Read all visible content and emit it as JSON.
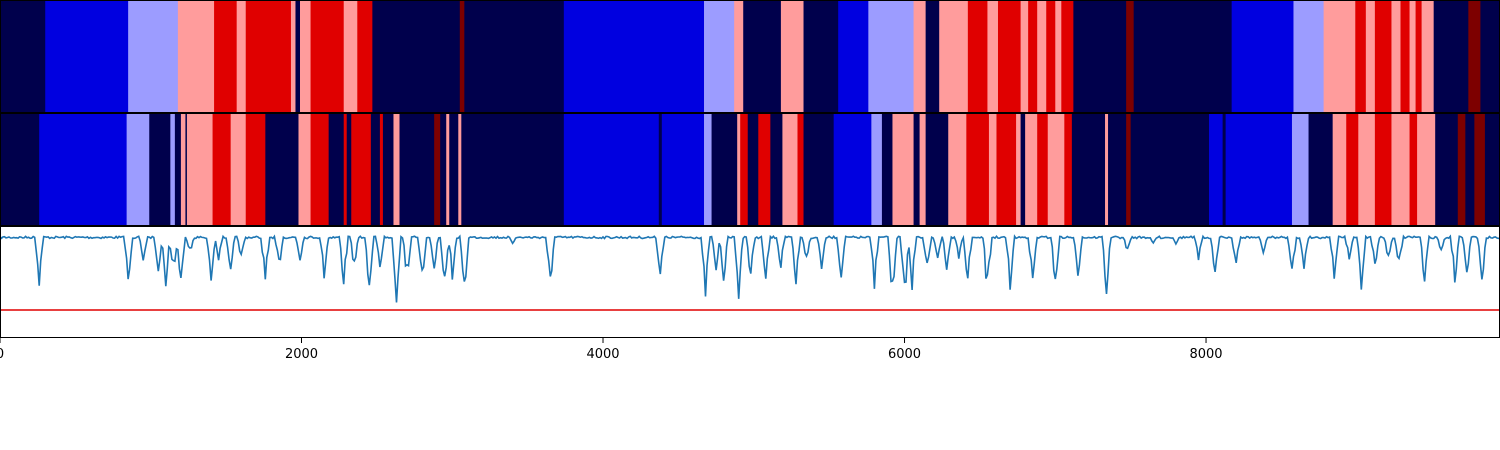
{
  "chart_data": {
    "type": "heatmap",
    "title": "",
    "xlabel": "",
    "ylabel": "",
    "xlim": [
      0,
      9950
    ],
    "x_ticks": [
      "0",
      "2000",
      "4000",
      "6000",
      "8000"
    ],
    "x_tick_values": [
      0,
      2000,
      4000,
      6000,
      8000
    ],
    "state_colors": {
      "0": "#00004c",
      "1": "#0000e0",
      "2": "#9c9cff",
      "3": "#ff9c9c",
      "4": "#e00000",
      "5": "#7d0000"
    },
    "tracks": [
      {
        "segments": [
          [
            0,
            300,
            0
          ],
          [
            300,
            850,
            1
          ],
          [
            850,
            1180,
            2
          ],
          [
            1180,
            1420,
            3
          ],
          [
            1420,
            1570,
            4
          ],
          [
            1570,
            1630,
            3
          ],
          [
            1630,
            1930,
            4
          ],
          [
            1930,
            1960,
            3
          ],
          [
            1960,
            1990,
            0
          ],
          [
            1990,
            2060,
            3
          ],
          [
            2060,
            2280,
            4
          ],
          [
            2280,
            2370,
            3
          ],
          [
            2370,
            2470,
            4
          ],
          [
            2470,
            3050,
            0
          ],
          [
            3050,
            3080,
            5
          ],
          [
            3080,
            3740,
            0
          ],
          [
            3740,
            4670,
            1
          ],
          [
            4670,
            4870,
            2
          ],
          [
            4870,
            4930,
            3
          ],
          [
            4930,
            5180,
            0
          ],
          [
            5180,
            5330,
            3
          ],
          [
            5330,
            5560,
            0
          ],
          [
            5560,
            5760,
            1
          ],
          [
            5760,
            6060,
            2
          ],
          [
            6060,
            6140,
            3
          ],
          [
            6140,
            6230,
            0
          ],
          [
            6230,
            6420,
            3
          ],
          [
            6420,
            6550,
            4
          ],
          [
            6550,
            6620,
            3
          ],
          [
            6620,
            6770,
            4
          ],
          [
            6770,
            6820,
            3
          ],
          [
            6820,
            6880,
            4
          ],
          [
            6880,
            6940,
            3
          ],
          [
            6940,
            7000,
            4
          ],
          [
            7000,
            7040,
            3
          ],
          [
            7040,
            7120,
            4
          ],
          [
            7120,
            7470,
            0
          ],
          [
            7470,
            7520,
            5
          ],
          [
            7520,
            8170,
            0
          ],
          [
            8170,
            8580,
            1
          ],
          [
            8580,
            8780,
            2
          ],
          [
            8780,
            8990,
            3
          ],
          [
            8990,
            9060,
            4
          ],
          [
            9060,
            9120,
            3
          ],
          [
            9120,
            9230,
            4
          ],
          [
            9230,
            9290,
            3
          ],
          [
            9290,
            9350,
            4
          ],
          [
            9350,
            9390,
            3
          ],
          [
            9390,
            9430,
            4
          ],
          [
            9430,
            9510,
            3
          ],
          [
            9510,
            9740,
            0
          ],
          [
            9740,
            9820,
            5
          ],
          [
            9820,
            9950,
            0
          ]
        ]
      },
      {
        "segments": [
          [
            0,
            260,
            0
          ],
          [
            260,
            840,
            1
          ],
          [
            840,
            990,
            2
          ],
          [
            990,
            1130,
            0
          ],
          [
            1130,
            1160,
            2
          ],
          [
            1160,
            1200,
            0
          ],
          [
            1200,
            1230,
            3
          ],
          [
            1230,
            1240,
            0
          ],
          [
            1240,
            1410,
            3
          ],
          [
            1410,
            1530,
            4
          ],
          [
            1530,
            1630,
            3
          ],
          [
            1630,
            1760,
            4
          ],
          [
            1760,
            1980,
            0
          ],
          [
            1980,
            2060,
            3
          ],
          [
            2060,
            2180,
            4
          ],
          [
            2180,
            2280,
            0
          ],
          [
            2280,
            2300,
            4
          ],
          [
            2300,
            2330,
            0
          ],
          [
            2330,
            2460,
            4
          ],
          [
            2460,
            2520,
            0
          ],
          [
            2520,
            2540,
            4
          ],
          [
            2540,
            2610,
            0
          ],
          [
            2610,
            2650,
            3
          ],
          [
            2650,
            2880,
            0
          ],
          [
            2880,
            2920,
            5
          ],
          [
            2920,
            2960,
            0
          ],
          [
            2960,
            2980,
            3
          ],
          [
            2980,
            3040,
            0
          ],
          [
            3040,
            3060,
            3
          ],
          [
            3060,
            3740,
            0
          ],
          [
            3740,
            4370,
            1
          ],
          [
            4370,
            4390,
            0
          ],
          [
            4390,
            4670,
            1
          ],
          [
            4670,
            4720,
            2
          ],
          [
            4720,
            4890,
            0
          ],
          [
            4890,
            4910,
            3
          ],
          [
            4910,
            4960,
            4
          ],
          [
            4960,
            5030,
            0
          ],
          [
            5030,
            5110,
            4
          ],
          [
            5110,
            5190,
            0
          ],
          [
            5190,
            5290,
            3
          ],
          [
            5290,
            5330,
            4
          ],
          [
            5330,
            5530,
            0
          ],
          [
            5530,
            5780,
            1
          ],
          [
            5780,
            5850,
            2
          ],
          [
            5850,
            5920,
            0
          ],
          [
            5920,
            5950,
            3
          ],
          [
            5950,
            6060,
            3
          ],
          [
            6060,
            6100,
            0
          ],
          [
            6100,
            6140,
            3
          ],
          [
            6140,
            6290,
            0
          ],
          [
            6290,
            6410,
            3
          ],
          [
            6410,
            6560,
            4
          ],
          [
            6560,
            6610,
            3
          ],
          [
            6610,
            6740,
            4
          ],
          [
            6740,
            6770,
            3
          ],
          [
            6770,
            6800,
            0
          ],
          [
            6800,
            6880,
            3
          ],
          [
            6880,
            6950,
            4
          ],
          [
            6950,
            7060,
            3
          ],
          [
            7060,
            7110,
            4
          ],
          [
            7110,
            7330,
            0
          ],
          [
            7330,
            7350,
            3
          ],
          [
            7350,
            7470,
            0
          ],
          [
            7470,
            7500,
            5
          ],
          [
            7500,
            8020,
            0
          ],
          [
            8020,
            8110,
            1
          ],
          [
            8110,
            8130,
            0
          ],
          [
            8130,
            8570,
            1
          ],
          [
            8570,
            8680,
            2
          ],
          [
            8680,
            8840,
            0
          ],
          [
            8840,
            8930,
            3
          ],
          [
            8930,
            9010,
            4
          ],
          [
            9010,
            9120,
            3
          ],
          [
            9120,
            9230,
            4
          ],
          [
            9230,
            9350,
            3
          ],
          [
            9350,
            9400,
            4
          ],
          [
            9400,
            9520,
            3
          ],
          [
            9520,
            9670,
            0
          ],
          [
            9670,
            9720,
            5
          ],
          [
            9720,
            9780,
            0
          ],
          [
            9780,
            9850,
            5
          ],
          [
            9850,
            9950,
            0
          ]
        ]
      }
    ],
    "line": {
      "color": "#1f77b4",
      "ylim": [
        -0.55,
        0.05
      ],
      "threshold": -0.4,
      "threshold_color": "#e00000",
      "baseline": 0,
      "dips": [
        [
          260,
          -0.28
        ],
        [
          850,
          -0.28
        ],
        [
          950,
          -0.15
        ],
        [
          1050,
          -0.2
        ],
        [
          1100,
          -0.3
        ],
        [
          1150,
          -0.22
        ],
        [
          1200,
          -0.3
        ],
        [
          1260,
          -0.1
        ],
        [
          1400,
          -0.3
        ],
        [
          1450,
          -0.15
        ],
        [
          1530,
          -0.2
        ],
        [
          1600,
          -0.15
        ],
        [
          1760,
          -0.28
        ],
        [
          1850,
          -0.2
        ],
        [
          1990,
          -0.15
        ],
        [
          2150,
          -0.25
        ],
        [
          2280,
          -0.3
        ],
        [
          2350,
          -0.2
        ],
        [
          2450,
          -0.32
        ],
        [
          2520,
          -0.2
        ],
        [
          2630,
          -0.38
        ],
        [
          2700,
          -0.25
        ],
        [
          2800,
          -0.3
        ],
        [
          2880,
          -0.2
        ],
        [
          2950,
          -0.35
        ],
        [
          3000,
          -0.25
        ],
        [
          3080,
          -0.37
        ],
        [
          3400,
          -0.05
        ],
        [
          3650,
          -0.3
        ],
        [
          4380,
          -0.25
        ],
        [
          4680,
          -0.35
        ],
        [
          4750,
          -0.2
        ],
        [
          4800,
          -0.3
        ],
        [
          4900,
          -0.35
        ],
        [
          4980,
          -0.25
        ],
        [
          5080,
          -0.3
        ],
        [
          5180,
          -0.2
        ],
        [
          5280,
          -0.3
        ],
        [
          5350,
          -0.15
        ],
        [
          5450,
          -0.2
        ],
        [
          5580,
          -0.25
        ],
        [
          5800,
          -0.3
        ],
        [
          5920,
          -0.38
        ],
        [
          6000,
          -0.38
        ],
        [
          6050,
          -0.3
        ],
        [
          6150,
          -0.2
        ],
        [
          6220,
          -0.15
        ],
        [
          6280,
          -0.2
        ],
        [
          6360,
          -0.15
        ],
        [
          6420,
          -0.28
        ],
        [
          6550,
          -0.35
        ],
        [
          6700,
          -0.3
        ],
        [
          6850,
          -0.28
        ],
        [
          7000,
          -0.3
        ],
        [
          7150,
          -0.25
        ],
        [
          7340,
          -0.35
        ],
        [
          7480,
          -0.1
        ],
        [
          7650,
          -0.05
        ],
        [
          7800,
          -0.05
        ],
        [
          7950,
          -0.15
        ],
        [
          8060,
          -0.28
        ],
        [
          8200,
          -0.2
        ],
        [
          8380,
          -0.1
        ],
        [
          8570,
          -0.25
        ],
        [
          8650,
          -0.2
        ],
        [
          8850,
          -0.25
        ],
        [
          8950,
          -0.15
        ],
        [
          9030,
          -0.3
        ],
        [
          9120,
          -0.2
        ],
        [
          9210,
          -0.15
        ],
        [
          9280,
          -0.18
        ],
        [
          9450,
          -0.28
        ],
        [
          9560,
          -0.1
        ],
        [
          9650,
          -0.28
        ],
        [
          9730,
          -0.25
        ],
        [
          9830,
          -0.28
        ]
      ]
    }
  }
}
